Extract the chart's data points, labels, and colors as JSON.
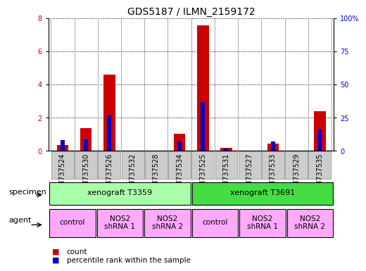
{
  "title": "GDS5187 / ILMN_2159172",
  "samples": [
    "GSM737524",
    "GSM737530",
    "GSM737526",
    "GSM737532",
    "GSM737528",
    "GSM737534",
    "GSM737525",
    "GSM737531",
    "GSM737527",
    "GSM737533",
    "GSM737529",
    "GSM737535"
  ],
  "count_values": [
    0.38,
    1.4,
    4.6,
    0.0,
    0.0,
    1.05,
    7.6,
    0.18,
    0.03,
    0.45,
    0.03,
    2.4
  ],
  "percentile_values": [
    8,
    9,
    27,
    0,
    0,
    7,
    37,
    2,
    0,
    7,
    0,
    16
  ],
  "ylim_left": [
    0,
    8
  ],
  "ylim_right": [
    0,
    100
  ],
  "yticks_left": [
    0,
    2,
    4,
    6,
    8
  ],
  "yticks_right": [
    0,
    25,
    50,
    75,
    100
  ],
  "ytick_labels_right": [
    "0",
    "25",
    "50",
    "75",
    "100%"
  ],
  "count_bar_width": 0.5,
  "percentile_bar_width": 0.18,
  "count_color": "#cc0000",
  "percentile_color": "#0000cc",
  "specimen_row": {
    "label": "specimen",
    "groups": [
      {
        "text": "xenograft T3359",
        "start": 0,
        "end": 5,
        "color": "#aaffaa"
      },
      {
        "text": "xenograft T3691",
        "start": 6,
        "end": 11,
        "color": "#44dd44"
      }
    ]
  },
  "agent_row": {
    "label": "agent",
    "groups": [
      {
        "text": "control",
        "start": 0,
        "end": 1,
        "color": "#ffaaff"
      },
      {
        "text": "NOS2\nshRNA 1",
        "start": 2,
        "end": 3,
        "color": "#ffaaff"
      },
      {
        "text": "NOS2\nshRNA 2",
        "start": 4,
        "end": 5,
        "color": "#ffaaff"
      },
      {
        "text": "control",
        "start": 6,
        "end": 7,
        "color": "#ffaaff"
      },
      {
        "text": "NOS2\nshRNA 1",
        "start": 8,
        "end": 9,
        "color": "#ffaaff"
      },
      {
        "text": "NOS2\nshRNA 2",
        "start": 10,
        "end": 11,
        "color": "#ffaaff"
      }
    ]
  },
  "legend": [
    {
      "label": "count",
      "color": "#cc0000"
    },
    {
      "label": "percentile rank within the sample",
      "color": "#0000cc"
    }
  ],
  "xtick_bg_color": "#cccccc",
  "label_fontsize": 8,
  "tick_fontsize": 7
}
